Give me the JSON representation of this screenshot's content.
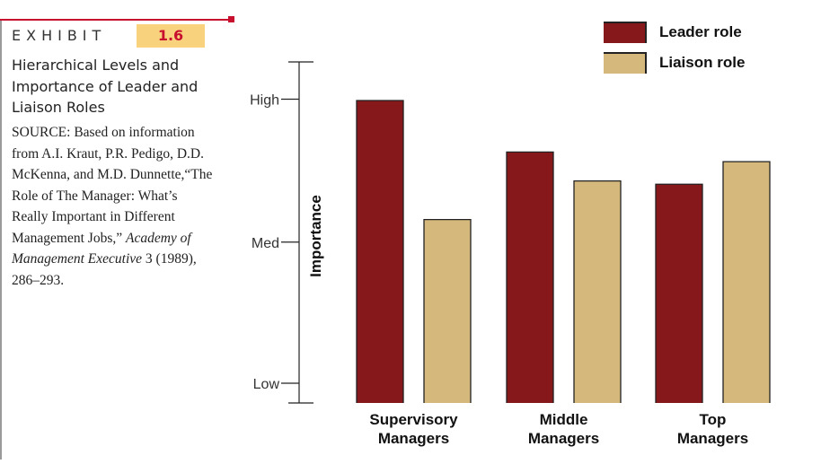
{
  "exhibit": {
    "label": "EXHIBIT",
    "number": "1.6",
    "title": "Hierarchical Levels and Importance of Leader and Liaison Roles",
    "source_prefix": "SOURCE: Based on information from A.I. Kraut, P.R. Pedigo, D.D. McKenna, and M.D. Dunnette,“The Role of The Manager: What’s Really Important in Different Management Jobs,”",
    "source_journal": "Academy of Management Executive",
    "source_suffix": " 3 (1989), 286–293."
  },
  "colors": {
    "leader": "#86171b",
    "liaison": "#d5b87c",
    "accent": "#c8102e",
    "number_box": "#f9d27e"
  },
  "chart_data": {
    "type": "bar",
    "categories": [
      "Supervisory Managers",
      "Middle Managers",
      "Top Managers"
    ],
    "category_lines": [
      [
        "Supervisory",
        "Managers"
      ],
      [
        "Middle",
        "Managers"
      ],
      [
        "Top",
        "Managers"
      ]
    ],
    "series": [
      {
        "name": "Leader role",
        "values": [
          0.94,
          0.78,
          0.68
        ]
      },
      {
        "name": "Liaison role",
        "values": [
          0.57,
          0.69,
          0.75
        ]
      }
    ],
    "ylabel": "Importance",
    "ytick_labels": [
      "Low",
      "Med",
      "High"
    ],
    "ytick_values": [
      0,
      0.5,
      1
    ],
    "ylim": [
      0,
      1.06
    ],
    "grid": false,
    "legend": "top-right"
  }
}
